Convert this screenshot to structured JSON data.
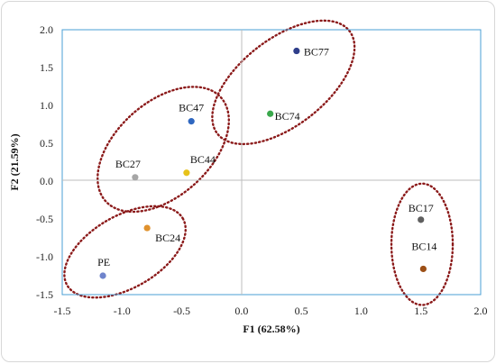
{
  "chart_data": {
    "type": "scatter",
    "title": "",
    "xlabel": "F1 (62.58%)",
    "ylabel": "F2 (21.59%)",
    "xlim": [
      -1.5,
      2.0
    ],
    "ylim": [
      -1.5,
      2.0
    ],
    "x_ticks": [
      "-1.5",
      "-1.0",
      "-0.5",
      "0.0",
      "0.5",
      "1.0",
      "1.5",
      "2.0"
    ],
    "y_ticks": [
      "2.0",
      "1.5",
      "1.0",
      "0.5",
      "0.0",
      "-0.5",
      "-1.0",
      "-1.5"
    ],
    "grid": false,
    "legend": "none",
    "points": [
      {
        "label": "BC77",
        "x": 0.46,
        "y": 1.72,
        "color": "#2e3e8a"
      },
      {
        "label": "BC74",
        "x": 0.24,
        "y": 0.89,
        "color": "#3aa84c"
      },
      {
        "label": "BC47",
        "x": -0.42,
        "y": 0.79,
        "color": "#2f67c0"
      },
      {
        "label": "BC27",
        "x": -0.89,
        "y": 0.05,
        "color": "#a6a6a6"
      },
      {
        "label": "BC44",
        "x": -0.46,
        "y": 0.11,
        "color": "#e7c21a"
      },
      {
        "label": "BC24",
        "x": -0.79,
        "y": -0.62,
        "color": "#e0922e"
      },
      {
        "label": "PE",
        "x": -1.16,
        "y": -1.25,
        "color": "#6f84cc"
      },
      {
        "label": "BC17",
        "x": 1.5,
        "y": -0.51,
        "color": "#5f5f5f"
      },
      {
        "label": "BC14",
        "x": 1.52,
        "y": -1.16,
        "color": "#9c4f16"
      }
    ],
    "clusters": [
      {
        "members": [
          "BC77",
          "BC74"
        ]
      },
      {
        "members": [
          "BC47",
          "BC27",
          "BC44"
        ]
      },
      {
        "members": [
          "BC24",
          "PE"
        ]
      },
      {
        "members": [
          "BC17",
          "BC14"
        ]
      }
    ],
    "colors": {
      "plot_border": "#4a9fd4",
      "zero_lines": "#bdbdbd",
      "cluster_outline": "#8b1a1a"
    }
  }
}
